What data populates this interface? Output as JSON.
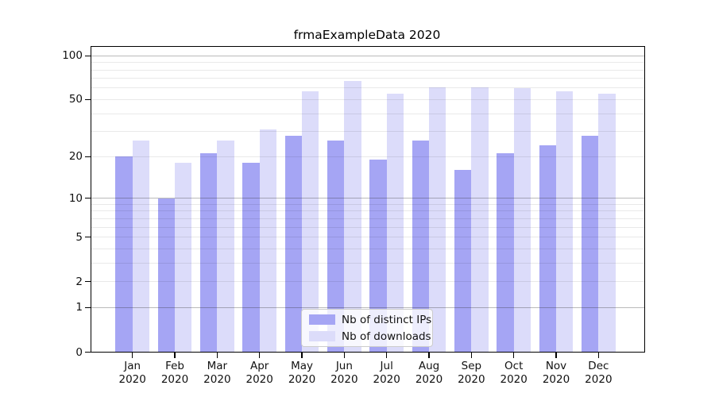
{
  "chart_data": {
    "type": "bar",
    "title": "frmaExampleData 2020",
    "categories": [
      "Jan",
      "Feb",
      "Mar",
      "Apr",
      "May",
      "Jun",
      "Jul",
      "Aug",
      "Sep",
      "Oct",
      "Nov",
      "Dec"
    ],
    "category_sublabel": "2020",
    "series": [
      {
        "name": "Nb of distinct IPs",
        "color": "#a5a5f4",
        "values": [
          20,
          10,
          21,
          18,
          28,
          26,
          19,
          26,
          16,
          21,
          24,
          28
        ]
      },
      {
        "name": "Nb of downloads",
        "color": "#dcdcfa",
        "values": [
          26,
          18,
          26,
          31,
          57,
          67,
          55,
          61,
          61,
          60,
          57,
          55
        ]
      }
    ],
    "xlabel": "",
    "ylabel": "",
    "y_scale": "log10(1+value)",
    "ylim": [
      0,
      120
    ],
    "y_ticks": [
      100,
      50,
      20,
      10,
      5,
      2,
      1,
      0
    ],
    "y_major_gridlines": [
      1,
      10,
      100
    ],
    "y_minor_gridlines": [
      2,
      3,
      4,
      5,
      6,
      7,
      8,
      9,
      20,
      30,
      40,
      50,
      60,
      70,
      80,
      90
    ],
    "grid": "on, drawn over bars",
    "legend_position": "lower center inside plot"
  }
}
